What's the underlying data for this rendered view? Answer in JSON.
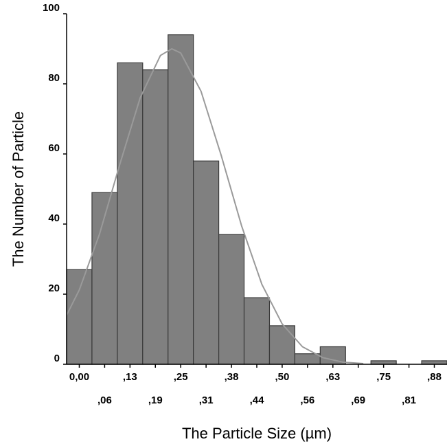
{
  "chart_data": {
    "type": "histogram",
    "xlabel": "The Particle Size (µm)",
    "ylabel": "The Number of Particle",
    "bins": [
      -0.03125,
      0.03125,
      0.09375,
      0.15625,
      0.21875,
      0.28125,
      0.34375,
      0.40625,
      0.46875,
      0.53125,
      0.59375,
      0.65625,
      0.71875,
      0.78125,
      0.84375,
      0.90625
    ],
    "values": [
      27,
      49,
      86,
      84,
      94,
      58,
      37,
      19,
      11,
      3,
      5,
      0,
      1,
      0,
      1
    ],
    "color": "#808080",
    "edgecolor": "#3a3a3a",
    "curve": {
      "color": "#9a9a9a",
      "x": [
        -0.03125,
        0,
        0.05,
        0.1,
        0.15,
        0.2,
        0.228,
        0.25,
        0.3,
        0.35,
        0.4,
        0.45,
        0.5,
        0.55,
        0.6,
        0.65,
        0.7
      ],
      "values": [
        14,
        21.2,
        37.2,
        57.1,
        76,
        88.1,
        90,
        88.8,
        77.9,
        59.5,
        39.5,
        22.8,
        11.5,
        5,
        1.9,
        0.6,
        0.2
      ]
    },
    "xlim": [
      -0.03125,
      0.90625
    ],
    "xticks": [
      {
        "value": 0,
        "label": "0,00"
      },
      {
        "value": 0.0625,
        "label": ",06"
      },
      {
        "value": 0.125,
        "label": ",13"
      },
      {
        "value": 0.1875,
        "label": ",19"
      },
      {
        "value": 0.25,
        "label": ",25"
      },
      {
        "value": 0.3125,
        "label": ",31"
      },
      {
        "value": 0.375,
        "label": ",38"
      },
      {
        "value": 0.4375,
        "label": ",44"
      },
      {
        "value": 0.5,
        "label": ",50"
      },
      {
        "value": 0.5625,
        "label": ",56"
      },
      {
        "value": 0.625,
        "label": ",63"
      },
      {
        "value": 0.6875,
        "label": ",69"
      },
      {
        "value": 0.75,
        "label": ",75"
      },
      {
        "value": 0.8125,
        "label": ",81"
      },
      {
        "value": 0.875,
        "label": ",88"
      }
    ],
    "ylim": [
      0,
      100
    ],
    "yticks": [
      0,
      20,
      40,
      60,
      80,
      100
    ]
  }
}
